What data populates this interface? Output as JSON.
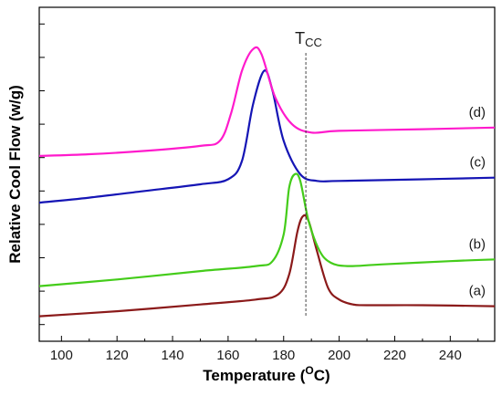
{
  "chart_data": {
    "type": "line",
    "title": "",
    "xlabel_main": "Temperature (",
    "xlabel_super": "O",
    "xlabel_unit": "C)",
    "ylabel": "Relative Cool Flow (w/g)",
    "xlim": [
      92,
      256
    ],
    "ylim": [
      0,
      1
    ],
    "x_ticks": [
      100,
      120,
      140,
      160,
      180,
      200,
      220,
      240
    ],
    "y_ticks": [
      0.05,
      0.15,
      0.25,
      0.35,
      0.45,
      0.55,
      0.65,
      0.75,
      0.85,
      0.95
    ],
    "grid": false,
    "annotation": {
      "text_main": "T",
      "text_sub": "CC",
      "x": 188
    },
    "series": [
      {
        "name": "(a)",
        "color": "#8b1a1a",
        "points": [
          [
            92,
            0.075
          ],
          [
            120,
            0.09
          ],
          [
            150,
            0.11
          ],
          [
            170,
            0.125
          ],
          [
            178,
            0.14
          ],
          [
            182,
            0.2
          ],
          [
            185,
            0.33
          ],
          [
            187,
            0.375
          ],
          [
            189,
            0.36
          ],
          [
            192,
            0.27
          ],
          [
            196,
            0.16
          ],
          [
            200,
            0.125
          ],
          [
            205,
            0.11
          ],
          [
            210,
            0.108
          ],
          [
            230,
            0.108
          ],
          [
            256,
            0.105
          ]
        ]
      },
      {
        "name": "(b)",
        "color": "#44cc1a",
        "points": [
          [
            92,
            0.165
          ],
          [
            120,
            0.185
          ],
          [
            150,
            0.21
          ],
          [
            170,
            0.225
          ],
          [
            176,
            0.24
          ],
          [
            180,
            0.32
          ],
          [
            182,
            0.46
          ],
          [
            184,
            0.5
          ],
          [
            186,
            0.48
          ],
          [
            189,
            0.36
          ],
          [
            193,
            0.27
          ],
          [
            197,
            0.235
          ],
          [
            203,
            0.225
          ],
          [
            215,
            0.23
          ],
          [
            240,
            0.24
          ],
          [
            256,
            0.245
          ]
        ]
      },
      {
        "name": "(c)",
        "color": "#1515b5",
        "points": [
          [
            92,
            0.415
          ],
          [
            110,
            0.43
          ],
          [
            130,
            0.45
          ],
          [
            150,
            0.47
          ],
          [
            160,
            0.485
          ],
          [
            165,
            0.54
          ],
          [
            169,
            0.71
          ],
          [
            173,
            0.81
          ],
          [
            176,
            0.75
          ],
          [
            180,
            0.6
          ],
          [
            186,
            0.5
          ],
          [
            192,
            0.48
          ],
          [
            200,
            0.48
          ],
          [
            230,
            0.485
          ],
          [
            256,
            0.49
          ]
        ]
      },
      {
        "name": "(d)",
        "color": "#ff1acc",
        "points": [
          [
            92,
            0.555
          ],
          [
            110,
            0.56
          ],
          [
            130,
            0.57
          ],
          [
            150,
            0.585
          ],
          [
            157,
            0.6
          ],
          [
            161,
            0.68
          ],
          [
            165,
            0.81
          ],
          [
            169,
            0.875
          ],
          [
            172,
            0.86
          ],
          [
            177,
            0.73
          ],
          [
            183,
            0.65
          ],
          [
            190,
            0.625
          ],
          [
            200,
            0.63
          ],
          [
            230,
            0.635
          ],
          [
            256,
            0.64
          ]
        ]
      }
    ]
  }
}
